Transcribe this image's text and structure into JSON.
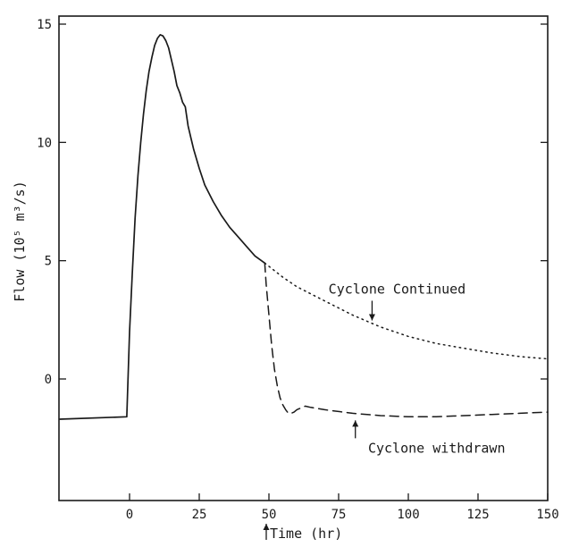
{
  "chart_data": {
    "type": "line",
    "title": "",
    "xlabel": "Time (hr)",
    "ylabel": "Flow (10⁵ m³/s)",
    "xlim": [
      -25,
      150
    ],
    "ylim": [
      -5,
      15
    ],
    "x_ticks": [
      0,
      25,
      50,
      75,
      100,
      125,
      150
    ],
    "x_tick_labels": [
      "0",
      "25",
      "50",
      "75",
      "100",
      "125",
      "150"
    ],
    "y_ticks": [
      0,
      5,
      10,
      15
    ],
    "y_tick_labels": [
      "0",
      "5",
      "10",
      "15"
    ],
    "grid": false,
    "legend": "none",
    "series": [
      {
        "style": "solid",
        "x": [
          -25,
          -1,
          -1,
          0,
          1,
          2,
          3,
          4,
          5,
          6,
          7,
          8,
          9,
          10,
          11,
          12,
          13,
          14,
          15,
          16,
          17,
          18,
          19,
          20,
          21,
          22,
          23,
          25,
          27,
          30,
          33,
          36,
          39,
          42,
          45,
          48.5
        ],
        "y": [
          -1.7,
          -1.6,
          -1.6,
          2.0,
          4.5,
          6.8,
          8.6,
          10.0,
          11.2,
          12.2,
          13.0,
          13.6,
          14.1,
          14.4,
          14.55,
          14.5,
          14.3,
          14.0,
          13.5,
          13.0,
          12.4,
          12.1,
          11.7,
          11.5,
          10.7,
          10.2,
          9.7,
          8.9,
          8.2,
          7.5,
          6.9,
          6.4,
          6.0,
          5.6,
          5.2,
          4.9
        ]
      },
      {
        "name": "Cyclone Continued",
        "style": "dotted",
        "x": [
          48.5,
          55,
          60,
          70,
          80,
          90,
          100,
          110,
          120,
          130,
          140,
          150
        ],
        "y": [
          4.9,
          4.3,
          3.9,
          3.3,
          2.7,
          2.2,
          1.8,
          1.5,
          1.3,
          1.1,
          0.95,
          0.85
        ]
      },
      {
        "name": "Cyclone withdrawn",
        "style": "dashed",
        "x": [
          48.5,
          49,
          50,
          51,
          52,
          53,
          54,
          55,
          56,
          57,
          58,
          59,
          60,
          61,
          62,
          63,
          65,
          70,
          80,
          90,
          100,
          110,
          120,
          130,
          140,
          150
        ],
        "y": [
          4.9,
          4.0,
          2.7,
          1.4,
          0.4,
          -0.3,
          -0.8,
          -1.1,
          -1.3,
          -1.45,
          -1.45,
          -1.4,
          -1.3,
          -1.25,
          -1.2,
          -1.15,
          -1.2,
          -1.3,
          -1.45,
          -1.55,
          -1.6,
          -1.6,
          -1.55,
          -1.5,
          -1.45,
          -1.4
        ]
      }
    ],
    "annotations": [
      {
        "text": "Cyclone Continued",
        "x": 87,
        "y": 2.4,
        "arrow": "down"
      },
      {
        "text": "Cyclone withdrawn",
        "x": 81,
        "y": -1.6,
        "arrow": "up"
      }
    ],
    "time_marker": {
      "x": 50,
      "arrow": "up"
    }
  }
}
